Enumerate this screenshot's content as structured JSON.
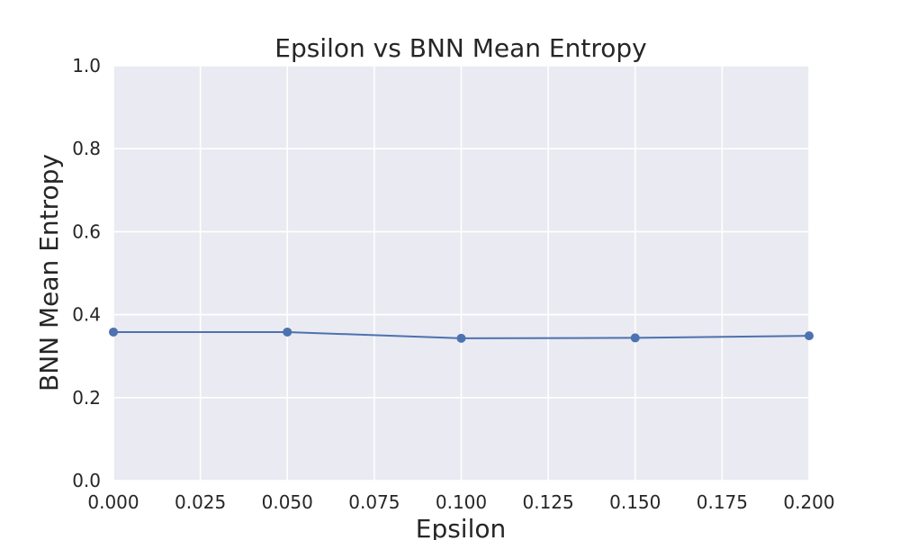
{
  "chart_data": {
    "type": "line",
    "title": "Epsilon vs BNN Mean Entropy",
    "xlabel": "Epsilon",
    "ylabel": "BNN Mean Entropy",
    "xlim": [
      0.0,
      0.2
    ],
    "ylim": [
      0.0,
      1.0
    ],
    "xticks": [
      "0.000",
      "0.025",
      "0.050",
      "0.075",
      "0.100",
      "0.125",
      "0.150",
      "0.175",
      "0.200"
    ],
    "yticks": [
      "0.0",
      "0.2",
      "0.4",
      "0.6",
      "0.8",
      "1.0"
    ],
    "grid": true,
    "x": [
      0.0,
      0.05,
      0.1,
      0.15,
      0.2
    ],
    "series": [
      {
        "values": [
          0.358,
          0.358,
          0.343,
          0.344,
          0.349
        ]
      }
    ],
    "colors": {
      "line": "#4c72b0",
      "plot_background": "#eaeaf2",
      "grid": "#ffffff",
      "text": "#262626"
    }
  }
}
